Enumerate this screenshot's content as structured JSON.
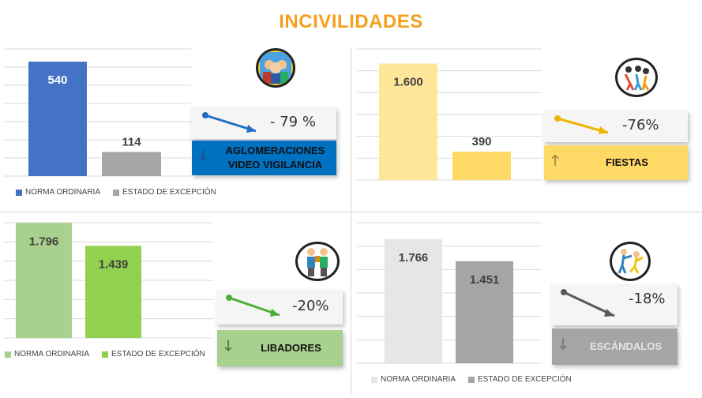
{
  "title": "INCIVILIDADES",
  "colors": {
    "title": "#f5a01c",
    "blue_main": "#4472c4",
    "blue_label": "#0070c0",
    "gray_bar": "#a6a6a6",
    "yellow_light": "#ffe699",
    "yellow": "#ffd966",
    "green_light": "#a9d18e",
    "green": "#92d050",
    "gray_light": "#e7e6e6",
    "gray_dark": "#a5a5a5"
  },
  "panels": [
    {
      "id": "aglomeraciones",
      "change": "- 79 %",
      "label_lines": [
        "AGLOMERACIONES",
        "VIDEO VIGILANCIA"
      ],
      "direction_icon": "arrow-down",
      "legend": [
        "NORMA ORDINARIA",
        "ESTADO DE EXCEPCIÓN"
      ]
    },
    {
      "id": "fiestas",
      "change": "-76%",
      "label_lines": [
        "FIESTAS"
      ],
      "direction_icon": "arrow-up",
      "legend": []
    },
    {
      "id": "libadores",
      "change": "-20%",
      "label_lines": [
        "LIBADORES"
      ],
      "direction_icon": "arrow-down",
      "legend": [
        "NORMA ORDINARIA",
        "ESTADO DE EXCEPCIÓN"
      ]
    },
    {
      "id": "escandalos",
      "change": "-18%",
      "label_lines": [
        "ESCÁNDALOS"
      ],
      "direction_icon": "arrow-down",
      "legend": [
        "NORMA ORDINARIA",
        "ESTADO DE EXCEPCIÓN"
      ]
    }
  ],
  "chart_data": [
    {
      "type": "bar",
      "categories": [
        "NORMA ORDINARIA",
        "ESTADO DE EXCEPCIÓN"
      ],
      "values": [
        540,
        114
      ],
      "value_labels": [
        "540",
        "114"
      ],
      "ylim": [
        0,
        600
      ],
      "grid": true,
      "legend_position": "bottom"
    },
    {
      "type": "bar",
      "categories": [
        "",
        ""
      ],
      "values": [
        1600,
        390
      ],
      "value_labels": [
        "1.600",
        "390"
      ],
      "ylim": [
        0,
        1800
      ],
      "grid": true
    },
    {
      "type": "bar",
      "categories": [
        "NORMA ORDINARIA",
        "ESTADO DE EXCEPCIÓN"
      ],
      "values": [
        1796,
        1439
      ],
      "value_labels": [
        "1.796",
        "1.439"
      ],
      "ylim": [
        0,
        1800
      ],
      "grid": true,
      "legend_position": "bottom"
    },
    {
      "type": "bar",
      "categories": [
        "NORMA ORDINARIA",
        "ESTADO DE EXCEPCIÓN"
      ],
      "values": [
        1766,
        1451
      ],
      "value_labels": [
        "1.766",
        "1.451"
      ],
      "ylim": [
        0,
        2000
      ],
      "grid": true,
      "legend_position": "bottom"
    }
  ]
}
